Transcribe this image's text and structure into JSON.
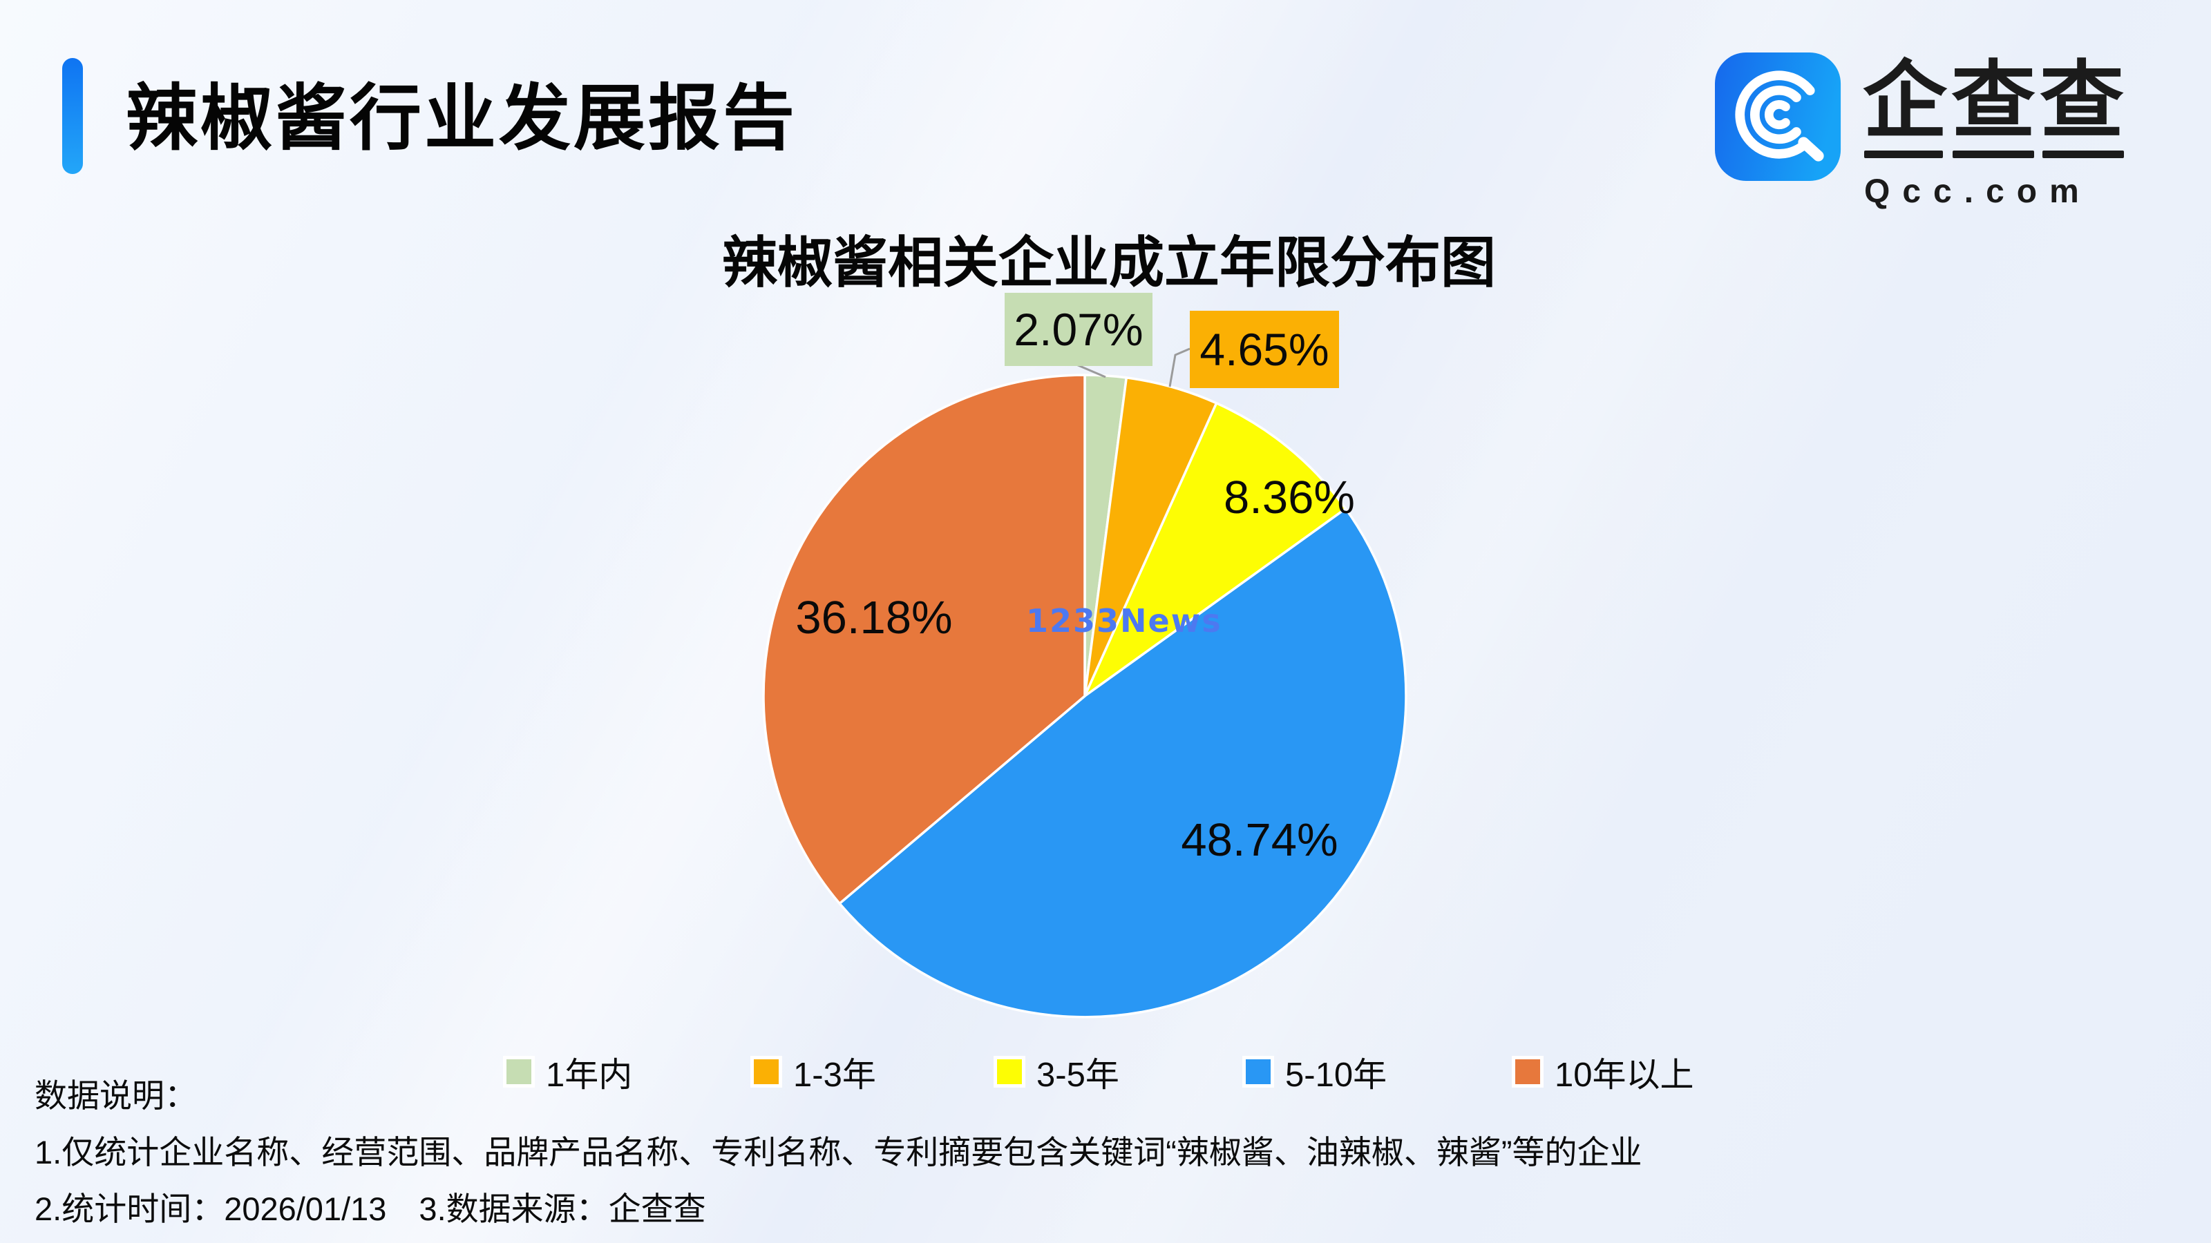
{
  "page": {
    "report_title": "辣椒酱行业发展报告",
    "watermark": "1233News"
  },
  "logo": {
    "name": "企查查",
    "domain": "Qcc.com",
    "icon": "qcc-magnifier-icon",
    "icon_gradient": [
      "#1668ec",
      "#17a3f7"
    ]
  },
  "notes": {
    "heading": "数据说明：",
    "line1": "1.仅统计企业名称、经营范围、品牌产品名称、专利名称、专利摘要包含关键词“辣椒酱、油辣椒、辣酱”等的企业",
    "line2": "2.统计时间：2026/01/13　3.数据来源：企查查"
  },
  "chart_data": {
    "type": "pie",
    "title": "辣椒酱相关企业成立年限分布图",
    "categories": [
      "1年内",
      "1-3年",
      "3-5年",
      "5-10年",
      "10年以上"
    ],
    "values": [
      2.07,
      4.65,
      8.36,
      48.74,
      36.18
    ],
    "unit": "%",
    "labels": [
      "2.07%",
      "4.65%",
      "8.36%",
      "48.74%",
      "36.18%"
    ],
    "colors": [
      "#c6ddb3",
      "#fbb004",
      "#fdfd04",
      "#2997f4",
      "#e7783c"
    ],
    "slice_border_color": "#ffffff",
    "leader_line_color": "#9b9b9b",
    "start_angle_deg": 90,
    "direction": "clockwise",
    "legend_position": "bottom",
    "label_style": "percent-inside-large-slices, boxed-callouts-for-small-slices"
  }
}
